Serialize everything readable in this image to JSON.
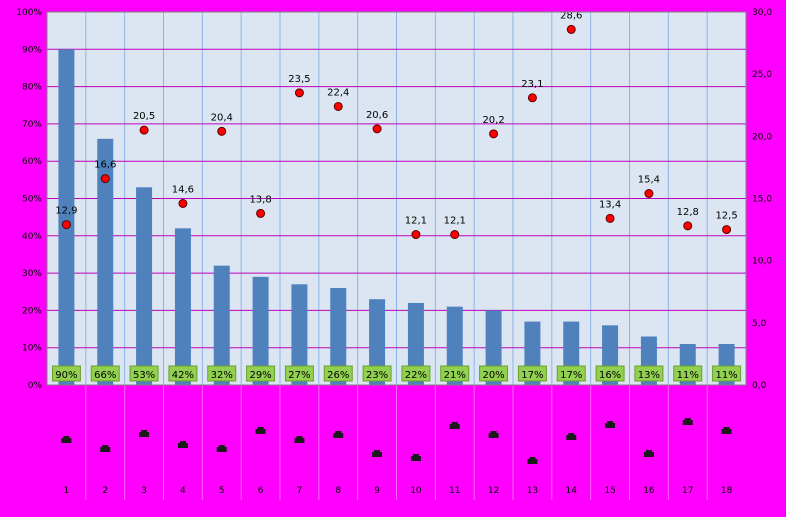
{
  "chart_data": {
    "type": "bar",
    "categories": [
      "1",
      "2",
      "3",
      "4",
      "5",
      "6",
      "7",
      "8",
      "9",
      "10",
      "11",
      "12",
      "13",
      "14",
      "15",
      "16",
      "17",
      "18"
    ],
    "series": [
      {
        "type": "bar",
        "axis": "left",
        "color": "#4F81BD",
        "values": [
          90,
          66,
          53,
          42,
          32,
          29,
          27,
          26,
          23,
          22,
          21,
          20,
          17,
          17,
          16,
          13,
          11,
          11
        ],
        "data_labels": [
          "90%",
          "66%",
          "53%",
          "42%",
          "32%",
          "29%",
          "27%",
          "26%",
          "23%",
          "22%",
          "21%",
          "20%",
          "17%",
          "17%",
          "16%",
          "13%",
          "11%",
          "11%"
        ]
      },
      {
        "type": "scatter",
        "axis": "right",
        "color": "#FF0000",
        "values": [
          12.9,
          16.6,
          20.5,
          14.6,
          20.4,
          13.8,
          23.5,
          22.4,
          20.6,
          12.1,
          12.1,
          20.2,
          23.1,
          28.6,
          13.4,
          15.4,
          12.8,
          12.5
        ],
        "data_labels": [
          "12,9",
          "16,6",
          "20,5",
          "14,6",
          "20,4",
          "13,8",
          "23,5",
          "22,4",
          "20,6",
          "12,1",
          "12,1",
          "20,2",
          "23,1",
          "28,6",
          "13,4",
          "15,4",
          "12,8",
          "12,5"
        ]
      }
    ],
    "y_left": {
      "ylim": [
        0,
        100
      ],
      "ticks": [
        0,
        10,
        20,
        30,
        40,
        50,
        60,
        70,
        80,
        90,
        100
      ],
      "tick_labels": [
        "0%",
        "10%",
        "20%",
        "30%",
        "40%",
        "50%",
        "60%",
        "70%",
        "80%",
        "90%",
        "100%"
      ]
    },
    "y_right": {
      "ylim": [
        0,
        30
      ],
      "ticks": [
        0,
        5,
        10,
        15,
        20,
        25,
        30
      ],
      "tick_labels": [
        "0,0",
        "5,0",
        "10,0",
        "15,0",
        "20,0",
        "25,0",
        "30,0"
      ]
    },
    "grid": true,
    "legend": "none",
    "colors": {
      "background": "#FF00FF",
      "plot_area": "#DCE6F2",
      "horizontal_grid": "#C000C0",
      "vertical_grid": "#8EB4E3",
      "data_label_box": "#92D050"
    }
  }
}
